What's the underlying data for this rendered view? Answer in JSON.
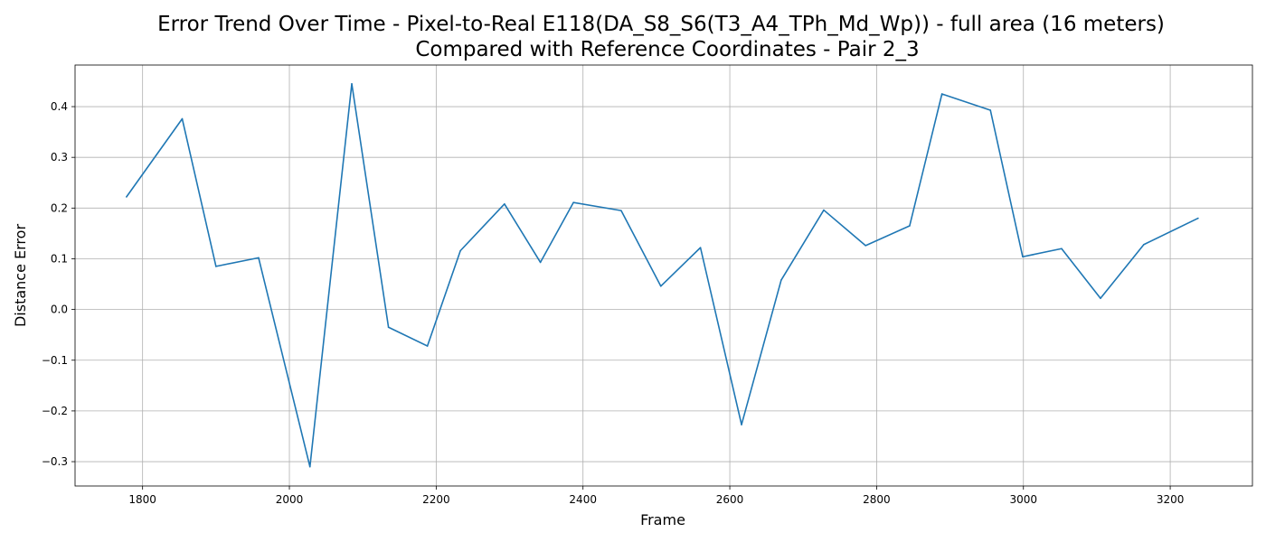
{
  "chart_data": {
    "type": "line",
    "title": [
      "Error Trend Over Time - Pixel-to-Real E118(DA_S8_S6(T3_A4_TPh_Md_Wp)) - full area (16 meters)",
      "Compared with Reference Coordinates - Pair 2_3"
    ],
    "xlabel": "Frame",
    "ylabel": "Distance Error",
    "xlim": [
      1708,
      3312
    ],
    "ylim": [
      -0.348,
      0.482
    ],
    "xticks": [
      1800,
      2000,
      2200,
      2400,
      2600,
      2800,
      3000,
      3200
    ],
    "yticks": [
      -0.3,
      -0.2,
      -0.1,
      0.0,
      0.1,
      0.2,
      0.3,
      0.4
    ],
    "grid": true,
    "series": [
      {
        "color": "#1f77b4",
        "x": [
          1778,
          1854,
          1900,
          1958,
          2028,
          2085,
          2135,
          2188,
          2233,
          2293,
          2342,
          2387,
          2452,
          2506,
          2560,
          2616,
          2670,
          2728,
          2785,
          2845,
          2889,
          2955,
          2999,
          3052,
          3105,
          3164,
          3238
        ],
        "y": [
          0.222,
          0.376,
          0.085,
          0.102,
          -0.31,
          0.445,
          -0.035,
          -0.072,
          0.116,
          0.208,
          0.093,
          0.211,
          0.195,
          0.046,
          0.122,
          -0.227,
          0.058,
          0.196,
          0.126,
          0.165,
          0.425,
          0.393,
          0.104,
          0.12,
          0.022,
          0.128,
          0.18
        ]
      }
    ]
  }
}
